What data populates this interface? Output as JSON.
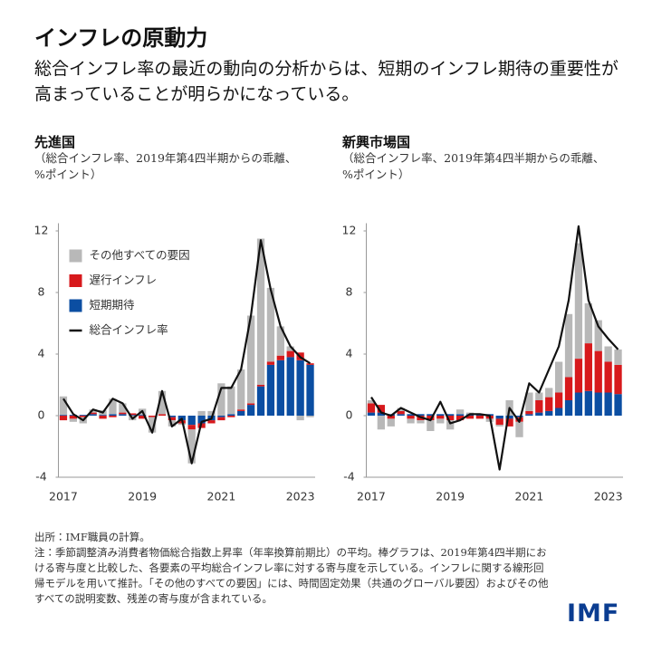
{
  "header": {
    "title": "インフレの原動力",
    "subtitle": "総合インフレ率の最近の動向の分析からは、短期のインフレ期待の重要性が高まっていることが明らかになっている。"
  },
  "chart_data": [
    {
      "type": "bar",
      "title": "先進国",
      "subtitle": "（総合インフレ率、2019年第4四半期からの乖離、%ポイント）",
      "categories": [
        "2017",
        null,
        null,
        null,
        null,
        null,
        null,
        null,
        "2019",
        null,
        null,
        null,
        null,
        null,
        null,
        null,
        "2021",
        null,
        null,
        null,
        null,
        null,
        null,
        null,
        "2023",
        null
      ],
      "ylim": [
        -4,
        12.5
      ],
      "yticks": [
        -4,
        0,
        4,
        8,
        12
      ],
      "legend": "upper left",
      "series": [
        {
          "name": "その他すべての要因",
          "color": "#b8b8b8",
          "values": [
            1.2,
            -0.2,
            -0.4,
            0.2,
            0.3,
            1.0,
            0.6,
            -0.3,
            0.4,
            -1.0,
            1.5,
            -0.4,
            -0.1,
            -2.2,
            0.3,
            0.3,
            2.1,
            1.8,
            2.6,
            5.7,
            9.5,
            4.8,
            1.9,
            0.3,
            -0.3,
            -0.1
          ]
        },
        {
          "name": "遅行インフレ",
          "color": "#d7191c",
          "values": [
            -0.3,
            -0.2,
            -0.1,
            0.1,
            -0.2,
            -0.1,
            0.1,
            0.1,
            -0.2,
            -0.1,
            0.1,
            -0.2,
            -0.2,
            -0.3,
            -0.3,
            -0.2,
            -0.2,
            -0.1,
            0.1,
            0.1,
            0.1,
            0.2,
            0.3,
            0.4,
            0.5,
            0.1
          ]
        },
        {
          "name": "短期期待",
          "color": "#0b4ea2",
          "values": [
            0.05,
            0.05,
            0.05,
            0.1,
            0.05,
            0.1,
            0.1,
            0.05,
            0.05,
            0,
            0,
            -0.1,
            -0.3,
            -0.6,
            -0.5,
            -0.3,
            -0.1,
            0.1,
            0.3,
            0.7,
            1.9,
            3.3,
            3.6,
            3.8,
            3.6,
            3.3
          ]
        },
        {
          "name": "総合インフレ率",
          "type": "line",
          "color": "#111111",
          "values": [
            1.1,
            0.1,
            -0.3,
            0.4,
            0.2,
            1.1,
            0.8,
            -0.2,
            0.3,
            -1.1,
            1.6,
            -0.7,
            -0.2,
            -3.1,
            -0.4,
            -0.2,
            1.8,
            1.8,
            3.0,
            6.5,
            11.4,
            8.2,
            5.8,
            4.5,
            3.8,
            3.4
          ]
        }
      ]
    },
    {
      "type": "bar",
      "title": "新興市場国",
      "subtitle": "（総合インフレ率、2019年第4四半期からの乖離、%ポイント）",
      "categories": [
        "2017",
        null,
        null,
        null,
        null,
        null,
        null,
        null,
        "2019",
        null,
        null,
        null,
        null,
        null,
        null,
        null,
        "2021",
        null,
        null,
        null,
        null,
        null,
        null,
        null,
        "2023",
        null
      ],
      "ylim": [
        -4,
        12.5
      ],
      "yticks": [
        -4,
        0,
        4,
        8,
        12
      ],
      "series": [
        {
          "name": "その他すべての要因",
          "color": "#b8b8b8",
          "values": [
            0.2,
            -0.9,
            -0.5,
            0.2,
            -0.3,
            -0.2,
            -0.7,
            -0.3,
            -0.6,
            0.3,
            0.1,
            0.0,
            -0.2,
            -0.1,
            1.0,
            -1.0,
            1.2,
            0.5,
            0.6,
            2.0,
            4.1,
            7.5,
            2.6,
            2.0,
            1.0,
            1.0
          ]
        },
        {
          "name": "遅行インフレ",
          "color": "#d7191c",
          "values": [
            0.6,
            0.5,
            -0.2,
            0.2,
            -0.2,
            -0.3,
            -0.3,
            -0.2,
            -0.3,
            -0.3,
            -0.2,
            -0.2,
            -0.2,
            -0.4,
            -0.5,
            -0.3,
            0.2,
            0.8,
            0.9,
            1.0,
            1.5,
            2.2,
            3.1,
            2.7,
            2.0,
            1.9
          ]
        },
        {
          "name": "短期期待",
          "color": "#0b4ea2",
          "values": [
            0.2,
            0.2,
            0.1,
            0.1,
            0.1,
            0.1,
            0.1,
            0.1,
            0.1,
            0.1,
            0.1,
            0.1,
            0.1,
            -0.2,
            -0.2,
            -0.1,
            0.1,
            0.2,
            0.3,
            0.5,
            1.0,
            1.5,
            1.6,
            1.5,
            1.5,
            1.4
          ]
        },
        {
          "name": "総合インフレ率",
          "type": "line",
          "color": "#111111",
          "values": [
            1.2,
            0.2,
            0.0,
            0.5,
            0.2,
            -0.1,
            -0.3,
            0.9,
            -0.5,
            -0.3,
            0.1,
            0.1,
            0.0,
            -3.5,
            0.5,
            -0.4,
            2.1,
            1.5,
            3.0,
            4.5,
            7.5,
            12.3,
            7.5,
            5.8,
            5.0,
            4.3
          ]
        }
      ]
    }
  ],
  "footer": {
    "source": "出所：IMF職員の計算。",
    "notes": "注：季節調整済み消費者物価総合指数上昇率（年率換算前期比）の平均。棒グラフは、2019年第4四半期における寄与度と比較した、各要素の平均総合インフレ率に対する寄与度を示している。インフレに関する線形回帰モデルを用いて推計。「その他のすべての要因」には、時間固定効果（共通のグローバル要因）およびその他すべての説明変数、残差の寄与度が含まれている。",
    "logo": "IMF"
  }
}
